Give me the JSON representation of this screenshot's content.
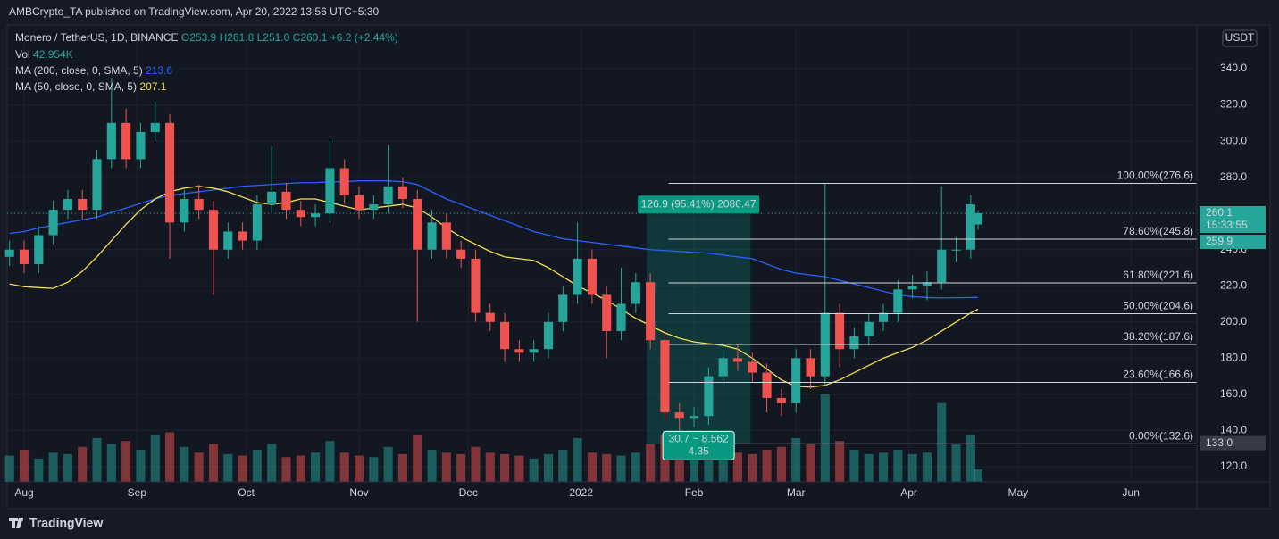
{
  "header": {
    "published": "AMBCrypto_TA published on TradingView.com, Apr 20, 2022 13:56 UTC+5:30"
  },
  "chart_data": {
    "type": "candlestick",
    "legend": {
      "symbol": "Monero / TetherUS, 1D, BINANCE",
      "ohlc": [
        "O253.9",
        "H261.8",
        "L251.0",
        "C260.1"
      ],
      "change": "+6.2 (+2.44%)",
      "vol_label": "Vol",
      "vol_value": "42.954K"
    },
    "currency": "USDT",
    "x": [
      -4,
      0,
      4,
      8,
      12,
      16,
      20,
      24,
      28,
      32,
      36,
      40,
      44,
      48,
      52,
      56,
      60,
      64,
      68,
      72,
      76,
      80,
      84,
      88,
      92,
      96,
      100,
      104,
      108,
      112,
      116,
      120,
      124,
      128,
      132,
      136,
      140,
      144,
      148,
      152,
      156,
      160,
      164,
      168,
      172,
      176,
      180,
      184,
      188,
      192,
      196,
      200,
      204,
      208,
      212,
      216,
      220,
      224,
      228,
      232,
      236,
      240,
      244,
      248,
      252,
      256,
      260,
      262
    ],
    "open": [
      236,
      240,
      232,
      248,
      262,
      268,
      262,
      290,
      310,
      290,
      305,
      310,
      255,
      268,
      262,
      240,
      250,
      245,
      265,
      272,
      262,
      258,
      260,
      285,
      270,
      262,
      265,
      275,
      268,
      240,
      255,
      240,
      235,
      205,
      200,
      185,
      183,
      185,
      200,
      215,
      235,
      215,
      195,
      210,
      222,
      190,
      150,
      147,
      148,
      170,
      180,
      178,
      172,
      158,
      155,
      180,
      170,
      205,
      185,
      192,
      200,
      205,
      218,
      220,
      222,
      240,
      240,
      253.9
    ],
    "high": [
      245,
      245,
      253,
      267,
      273,
      273,
      295,
      335,
      318,
      310,
      322,
      315,
      273,
      276,
      267,
      255,
      255,
      270,
      297,
      277,
      267,
      265,
      300,
      290,
      275,
      270,
      298,
      280,
      273,
      262,
      260,
      245,
      240,
      210,
      205,
      190,
      190,
      205,
      220,
      255,
      240,
      220,
      230,
      227,
      227,
      195,
      155,
      153,
      175,
      188,
      188,
      183,
      177,
      163,
      185,
      185,
      276.6,
      210,
      197,
      205,
      210,
      223,
      226,
      228,
      275,
      247,
      270,
      261.8
    ],
    "low": [
      231,
      227,
      227,
      243,
      257,
      257,
      257,
      285,
      285,
      285,
      300,
      235,
      250,
      257,
      215,
      235,
      240,
      240,
      260,
      257,
      253,
      253,
      255,
      265,
      257,
      257,
      260,
      263,
      200,
      235,
      235,
      230,
      200,
      195,
      178,
      178,
      178,
      180,
      195,
      210,
      210,
      180,
      190,
      205,
      185,
      145,
      140,
      142,
      143,
      165,
      173,
      167,
      150,
      148,
      150,
      163,
      165,
      175,
      180,
      187,
      195,
      200,
      213,
      212,
      218,
      233,
      235,
      251.0
    ],
    "close": [
      240,
      232,
      248,
      262,
      268,
      262,
      290,
      310,
      290,
      305,
      310,
      255,
      268,
      262,
      240,
      250,
      245,
      265,
      272,
      262,
      258,
      260,
      285,
      270,
      262,
      265,
      275,
      268,
      240,
      255,
      240,
      235,
      205,
      200,
      185,
      183,
      185,
      200,
      215,
      235,
      215,
      195,
      210,
      222,
      190,
      150,
      147,
      148,
      170,
      180,
      178,
      172,
      158,
      155,
      180,
      170,
      205,
      185,
      192,
      200,
      205,
      218,
      220,
      222,
      240,
      240,
      265,
      260.1
    ],
    "volume": [
      90,
      110,
      80,
      100,
      95,
      120,
      150,
      130,
      140,
      110,
      160,
      170,
      120,
      100,
      130,
      95,
      90,
      110,
      130,
      85,
      90,
      100,
      140,
      100,
      90,
      85,
      120,
      95,
      160,
      110,
      100,
      95,
      120,
      100,
      95,
      90,
      80,
      95,
      110,
      150,
      100,
      95,
      90,
      100,
      130,
      160,
      110,
      95,
      120,
      130,
      100,
      95,
      110,
      120,
      150,
      130,
      300,
      140,
      110,
      95,
      100,
      110,
      95,
      100,
      270,
      130,
      160,
      42.954
    ],
    "volume_lim": [
      0,
      1560
    ],
    "up_color": "#26a69a",
    "down_color": "#ef5350",
    "series": [
      {
        "name": "MA (200, close, 0, SMA, 5)",
        "color": "#2962ff",
        "values": [
          249,
          250,
          252,
          253.5,
          255,
          256.5,
          258,
          260.5,
          263,
          265.5,
          268,
          270,
          271,
          272,
          273,
          274,
          275,
          275.5,
          276,
          276.5,
          277,
          277,
          277.5,
          277.5,
          278,
          278,
          278,
          277.5,
          276,
          272,
          268,
          265,
          262,
          259,
          256,
          253,
          250,
          248,
          246,
          245,
          244,
          243,
          242,
          241,
          240,
          239.5,
          239,
          238.5,
          238,
          237,
          236,
          235,
          232,
          229,
          227,
          226,
          225,
          223,
          221,
          219,
          217,
          215,
          214,
          213.5,
          213.3,
          213.4,
          213.5,
          213.6
        ]
      },
      {
        "name": "MA (50, close, 0, SMA, 5)",
        "color": "#f5e050",
        "values": [
          221,
          219.5,
          219,
          218.6,
          222,
          228,
          236,
          245,
          254,
          262,
          268,
          272,
          274,
          275,
          274,
          272,
          269,
          266,
          265,
          266,
          268,
          268,
          266,
          264,
          262,
          263,
          264,
          265,
          263,
          258,
          252,
          247,
          243,
          239,
          236,
          235,
          234,
          230,
          225,
          220,
          216,
          212,
          207,
          202,
          198,
          194,
          191,
          189,
          188,
          187,
          185,
          180,
          174,
          168,
          164.4,
          164,
          165,
          168,
          172,
          176,
          180,
          183,
          186,
          190,
          195,
          200,
          205,
          207.1
        ]
      }
    ],
    "xlim": [
      -4.66,
      322.1
    ],
    "xticks": [
      {
        "value": 0,
        "label": "Aug"
      },
      {
        "value": 31,
        "label": "Sep"
      },
      {
        "value": 61,
        "label": "Oct"
      },
      {
        "value": 92,
        "label": "Nov"
      },
      {
        "value": 122,
        "label": "Dec"
      },
      {
        "value": 153,
        "label": "2022"
      },
      {
        "value": 184,
        "label": "Feb"
      },
      {
        "value": 212,
        "label": "Mar"
      },
      {
        "value": 243,
        "label": "Apr"
      },
      {
        "value": 273,
        "label": "May"
      },
      {
        "value": 304,
        "label": "Jun"
      }
    ],
    "ylim": [
      111.6,
      363.2
    ],
    "yticks": [
      {
        "value": 120,
        "label": "120.0"
      },
      {
        "value": 140,
        "label": "140.0"
      },
      {
        "value": 160,
        "label": "160.0"
      },
      {
        "value": 180,
        "label": "180.0"
      },
      {
        "value": 200,
        "label": "200.0"
      },
      {
        "value": 220,
        "label": "220.0"
      },
      {
        "value": 240,
        "label": "240.0"
      },
      {
        "value": 260,
        "label": "260.0"
      },
      {
        "value": 280,
        "label": "280.0"
      },
      {
        "value": 300,
        "label": "300.0"
      },
      {
        "value": 320,
        "label": "320.0"
      },
      {
        "value": 340,
        "label": "340.0"
      }
    ],
    "grid": true,
    "last_price": {
      "value": 260.1,
      "countdown": "15:33:55"
    },
    "second_badge": 259.9,
    "low_badge": {
      "value": 133,
      "label": "133.0"
    },
    "fibonacci": {
      "from_x": 177,
      "color": "#d1d4dc",
      "levels": [
        {
          "value": 276.6,
          "label": "100.00%(276.6)"
        },
        {
          "value": 245.8,
          "label": "78.60%(245.8)"
        },
        {
          "value": 221.6,
          "label": "61.80%(221.6)"
        },
        {
          "value": 204.6,
          "label": "50.00%(204.6)"
        },
        {
          "value": 187.6,
          "label": "38.20%(187.6)"
        },
        {
          "value": 166.6,
          "label": "23.60%(166.6)"
        },
        {
          "value": 132.6,
          "label": "0.00%(132.6)"
        }
      ]
    },
    "measure": {
      "x": [
        171,
        199.5
      ],
      "y": [
        132.6,
        259.5
      ],
      "label": "126.9 (95.41%) 2086.47",
      "footer": [
        "30.7 ~ 8.562",
        "4.35"
      ],
      "color": "#089981"
    }
  },
  "footer": {
    "brand": "TradingView"
  }
}
